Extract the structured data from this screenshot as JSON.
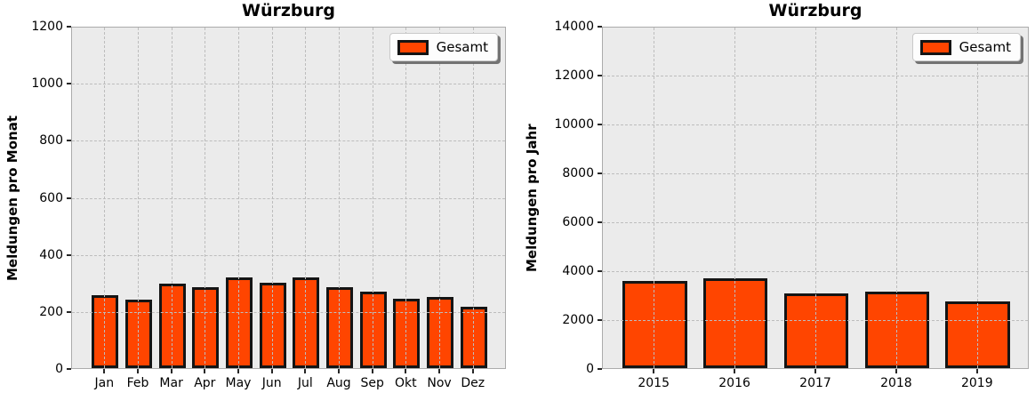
{
  "figure": {
    "background": "#ffffff"
  },
  "colors": {
    "bar_fill": "#FF4500",
    "bar_edge": "#141414",
    "plot_background": "#EBEBEB",
    "grid": "#BDBDBD",
    "spine": "#ABABAB",
    "tick": "#262626",
    "text": "#000000",
    "legend_background": "#FDFDFD"
  },
  "chart_data": [
    {
      "type": "bar",
      "title": "Würzburg",
      "ylabel": "Meldungen pro Monat",
      "xlabel": "",
      "legend": [
        "Gesamt"
      ],
      "legend_position": "upper right",
      "grid": "dashed, drawn above bars",
      "categories": [
        "Jan",
        "Feb",
        "Mar",
        "Apr",
        "May",
        "Jun",
        "Jul",
        "Aug",
        "Sep",
        "Okt",
        "Nov",
        "Dez"
      ],
      "values": [
        250,
        235,
        290,
        280,
        312,
        296,
        312,
        280,
        263,
        240,
        246,
        211
      ],
      "ylim": [
        0,
        1200
      ],
      "yticks": [
        0,
        200,
        400,
        600,
        800,
        1000,
        1200
      ]
    },
    {
      "type": "bar",
      "title": "Würzburg",
      "ylabel": "Meldungen pro Jahr",
      "xlabel": "",
      "legend": [
        "Gesamt"
      ],
      "legend_position": "upper right",
      "grid": "dashed, drawn above bars",
      "categories": [
        "2015",
        "2016",
        "2017",
        "2018",
        "2019"
      ],
      "values": [
        3500,
        3620,
        3010,
        3070,
        2690
      ],
      "ylim": [
        0,
        14000
      ],
      "yticks": [
        0,
        2000,
        4000,
        6000,
        8000,
        10000,
        12000,
        14000
      ]
    }
  ]
}
